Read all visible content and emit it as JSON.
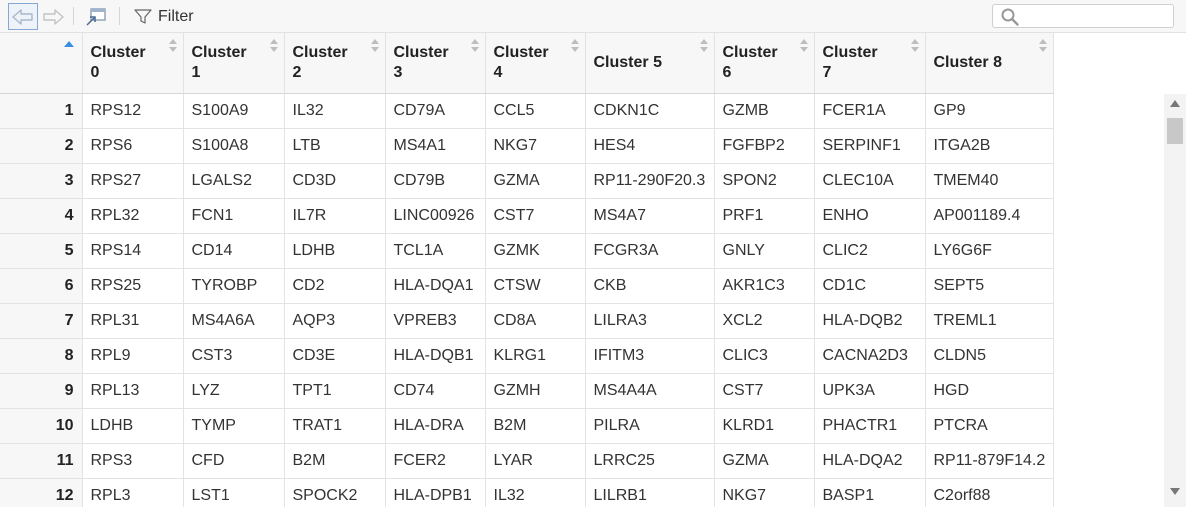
{
  "toolbar": {
    "back_icon": "arrow-left-icon",
    "forward_icon": "arrow-right-icon",
    "popout_icon": "popout-window-icon",
    "filter_label": "Filter",
    "search_placeholder": "",
    "search_value": ""
  },
  "table": {
    "sorted_column": "index",
    "sort_direction": "ascending",
    "columns": [
      {
        "line1": "Cluster",
        "line2": "0"
      },
      {
        "line1": "Cluster",
        "line2": "1"
      },
      {
        "line1": "Cluster",
        "line2": "2"
      },
      {
        "line1": "Cluster",
        "line2": "3"
      },
      {
        "line1": "Cluster",
        "line2": "4"
      },
      {
        "line1": "Cluster 5",
        "line2": ""
      },
      {
        "line1": "Cluster",
        "line2": "6"
      },
      {
        "line1": "Cluster",
        "line2": "7"
      },
      {
        "line1": "Cluster 8",
        "line2": ""
      }
    ],
    "rows": [
      {
        "index": "1",
        "cells": [
          "RPS12",
          "S100A9",
          "IL32",
          "CD79A",
          "CCL5",
          "CDKN1C",
          "GZMB",
          "FCER1A",
          "GP9"
        ]
      },
      {
        "index": "2",
        "cells": [
          "RPS6",
          "S100A8",
          "LTB",
          "MS4A1",
          "NKG7",
          "HES4",
          "FGFBP2",
          "SERPINF1",
          "ITGA2B"
        ]
      },
      {
        "index": "3",
        "cells": [
          "RPS27",
          "LGALS2",
          "CD3D",
          "CD79B",
          "GZMA",
          "RP11-290F20.3",
          "SPON2",
          "CLEC10A",
          "TMEM40"
        ]
      },
      {
        "index": "4",
        "cells": [
          "RPL32",
          "FCN1",
          "IL7R",
          "LINC00926",
          "CST7",
          "MS4A7",
          "PRF1",
          "ENHO",
          "AP001189.4"
        ]
      },
      {
        "index": "5",
        "cells": [
          "RPS14",
          "CD14",
          "LDHB",
          "TCL1A",
          "GZMK",
          "FCGR3A",
          "GNLY",
          "CLIC2",
          "LY6G6F"
        ]
      },
      {
        "index": "6",
        "cells": [
          "RPS25",
          "TYROBP",
          "CD2",
          "HLA-DQA1",
          "CTSW",
          "CKB",
          "AKR1C3",
          "CD1C",
          "SEPT5"
        ]
      },
      {
        "index": "7",
        "cells": [
          "RPL31",
          "MS4A6A",
          "AQP3",
          "VPREB3",
          "CD8A",
          "LILRA3",
          "XCL2",
          "HLA-DQB2",
          "TREML1"
        ]
      },
      {
        "index": "8",
        "cells": [
          "RPL9",
          "CST3",
          "CD3E",
          "HLA-DQB1",
          "KLRG1",
          "IFITM3",
          "CLIC3",
          "CACNA2D3",
          "CLDN5"
        ]
      },
      {
        "index": "9",
        "cells": [
          "RPL13",
          "LYZ",
          "TPT1",
          "CD74",
          "GZMH",
          "MS4A4A",
          "CST7",
          "UPK3A",
          "HGD"
        ]
      },
      {
        "index": "10",
        "cells": [
          "LDHB",
          "TYMP",
          "TRAT1",
          "HLA-DRA",
          "B2M",
          "PILRA",
          "KLRD1",
          "PHACTR1",
          "PTCRA"
        ]
      },
      {
        "index": "11",
        "cells": [
          "RPS3",
          "CFD",
          "B2M",
          "FCER2",
          "LYAR",
          "LRRC25",
          "GZMA",
          "HLA-DQA2",
          "RP11-879F14.2"
        ]
      },
      {
        "index": "12",
        "cells": [
          "RPL3",
          "LST1",
          "SPOCK2",
          "HLA-DPB1",
          "IL32",
          "LILRB1",
          "NKG7",
          "BASP1",
          "C2orf88"
        ]
      }
    ]
  }
}
